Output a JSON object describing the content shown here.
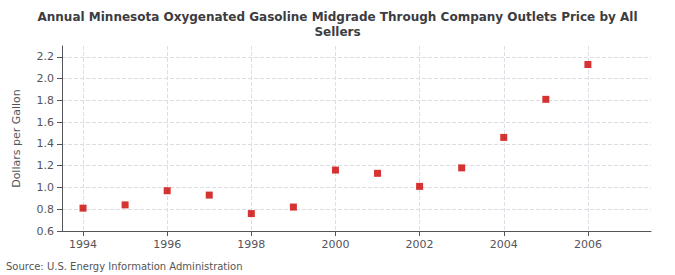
{
  "chart_data": {
    "type": "scatter",
    "title": "Annual Minnesota Oxygenated Gasoline Midgrade Through Company Outlets Price by All\nSellers",
    "ylabel": "Dollars per Gallon",
    "annotation": "Source: U.S. Energy Information Administration",
    "x": [
      1994,
      1995,
      1996,
      1997,
      1998,
      1999,
      2000,
      2001,
      2002,
      2003,
      2004,
      2005,
      2006
    ],
    "values": [
      0.81,
      0.84,
      0.97,
      0.93,
      0.76,
      0.82,
      1.16,
      1.13,
      1.01,
      1.18,
      1.46,
      1.81,
      2.13
    ],
    "color": "#cc0000",
    "marker": "square",
    "xlim": [
      1993.5,
      2007.5
    ],
    "xticks": [
      1994,
      1996,
      1998,
      2000,
      2002,
      2004,
      2006
    ],
    "ylim": [
      0.6,
      2.3
    ],
    "yticks": [
      0.6,
      0.8,
      {
        "value": 1.0,
        "label": "1.0"
      },
      1.2,
      1.4,
      1.6,
      1.8,
      {
        "value": 2.0,
        "label": "2.0"
      },
      2.2
    ],
    "grid": true
  }
}
